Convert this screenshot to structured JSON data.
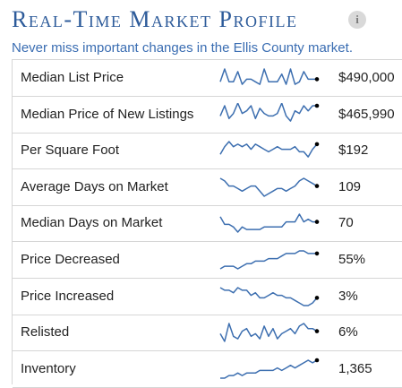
{
  "header": {
    "title": "Real-Time Market Profile",
    "info_icon": "info-icon",
    "subtitle": "Never miss important changes in the Ellis County market."
  },
  "colors": {
    "title": "#2d5b9a",
    "subtitle": "#3a6db2",
    "sparkline": "#3d6fb0",
    "endpoint": "#000000",
    "border": "#d6d6d6"
  },
  "metrics": [
    {
      "label": "Median List Price",
      "value": "$490,000",
      "trend": [
        3,
        8,
        3,
        3,
        7,
        2,
        4,
        4,
        3,
        2,
        8,
        3,
        3,
        3,
        6,
        2,
        8,
        2,
        3,
        7,
        4,
        4,
        4
      ]
    },
    {
      "label": "Median Price of New Listings",
      "value": "$465,990",
      "trend": [
        4,
        8,
        3,
        5,
        9,
        5,
        6,
        8,
        3,
        7,
        5,
        4,
        4,
        5,
        9,
        4,
        2,
        6,
        5,
        8,
        6,
        8,
        8
      ]
    },
    {
      "label": "Per Square Foot",
      "value": "$192",
      "trend": [
        3,
        6,
        8,
        6,
        7,
        6,
        7,
        5,
        7,
        6,
        5,
        4,
        5,
        6,
        5,
        5,
        5,
        6,
        4,
        4,
        2,
        5,
        7
      ]
    },
    {
      "label": "Average Days on Market",
      "value": "109",
      "trend": [
        8,
        7,
        5,
        5,
        4,
        3,
        4,
        5,
        5,
        3,
        1,
        2,
        3,
        4,
        4,
        3,
        4,
        5,
        7,
        8,
        7,
        6,
        5
      ]
    },
    {
      "label": "Median Days on Market",
      "value": "70",
      "trend": [
        7,
        4,
        4,
        3,
        1,
        3,
        2,
        2,
        2,
        2,
        3,
        3,
        3,
        3,
        3,
        5,
        5,
        5,
        8,
        5,
        6,
        5,
        5
      ]
    },
    {
      "label": "Price Decreased",
      "value": "55%",
      "trend": [
        1,
        2,
        2,
        2,
        1,
        2,
        3,
        3,
        4,
        4,
        4,
        5,
        5,
        5,
        6,
        7,
        7,
        7,
        8,
        8,
        7,
        7,
        7
      ]
    },
    {
      "label": "Price Increased",
      "value": "3%",
      "trend": [
        8,
        7,
        7,
        6,
        8,
        7,
        7,
        5,
        6,
        4,
        4,
        5,
        6,
        5,
        5,
        4,
        4,
        3,
        2,
        1,
        1,
        2,
        4
      ]
    },
    {
      "label": "Relisted",
      "value": "6%",
      "trend": [
        4,
        1,
        8,
        3,
        2,
        5,
        6,
        3,
        4,
        2,
        7,
        3,
        6,
        2,
        4,
        5,
        6,
        4,
        7,
        8,
        6,
        6,
        5
      ]
    },
    {
      "label": "Inventory",
      "value": "1,365",
      "trend": [
        1,
        1,
        2,
        2,
        3,
        2,
        3,
        3,
        3,
        4,
        4,
        4,
        4,
        5,
        4,
        5,
        6,
        5,
        6,
        7,
        8,
        7,
        8
      ]
    }
  ]
}
